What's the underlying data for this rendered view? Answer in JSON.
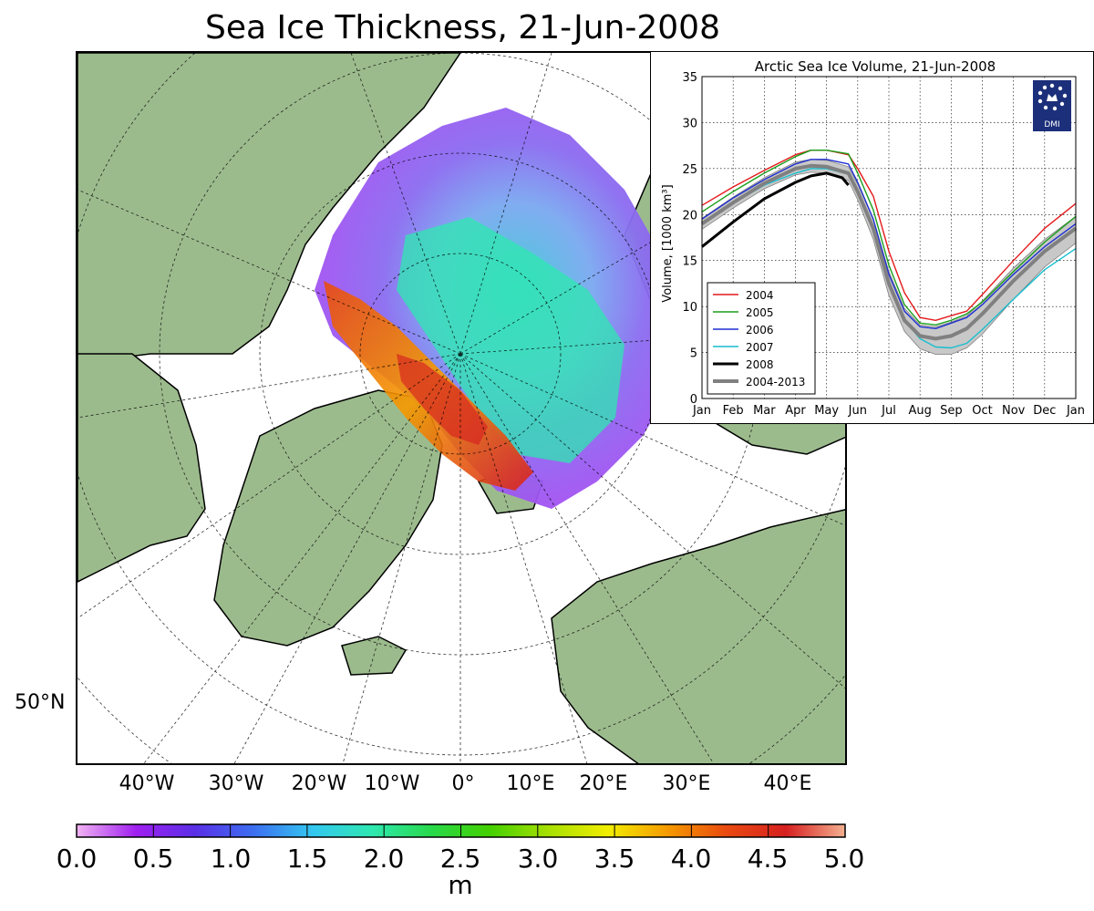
{
  "figure": {
    "title": "Sea Ice Thickness, 21-Jun-2008"
  },
  "map": {
    "lat_labels": [
      "50°N"
    ],
    "lon_labels": [
      "40°W",
      "30°W",
      "20°W",
      "10°W",
      "0°",
      "10°E",
      "20°E",
      "30°E",
      "40°E"
    ],
    "colors": {
      "land": "#9cbb8d",
      "ocean": "#ffffff"
    }
  },
  "colorbar": {
    "unit": "m",
    "ticks": [
      "0.0",
      "0.5",
      "1.0",
      "1.5",
      "2.0",
      "2.5",
      "3.0",
      "3.5",
      "4.0",
      "4.5",
      "5.0"
    ],
    "range": [
      0,
      5
    ],
    "colors": [
      "#f2b4f2",
      "#a020f0",
      "#5a2fe6",
      "#3c6ff0",
      "#33c8f0",
      "#2ee8b0",
      "#28d94a",
      "#44d000",
      "#a8e000",
      "#f2ee00",
      "#f59a00",
      "#e94a10",
      "#d62020",
      "#f4b090"
    ]
  },
  "chart_data": {
    "type": "line",
    "title": "Arctic Sea Ice Volume, 21-Jun-2008",
    "xlabel": "",
    "ylabel": "Volume, [1000 km³]",
    "xlim": [
      0,
      12
    ],
    "ylim": [
      0,
      35
    ],
    "yticks": [
      "0",
      "5",
      "10",
      "15",
      "20",
      "25",
      "30",
      "35"
    ],
    "xtick_labels": [
      "Jan",
      "Feb",
      "Mar",
      "Apr",
      "May",
      "Jun",
      "Jul",
      "Aug",
      "Sep",
      "Oct",
      "Nov",
      "Dec",
      "Jan"
    ],
    "grid": true,
    "legend_position": "lower-left",
    "logo_text": "DMI",
    "series": [
      {
        "name": "2004",
        "color": "#e41a1c",
        "x": [
          0,
          1,
          2,
          3,
          3.5,
          4,
          4.7,
          5,
          5.5,
          6,
          6.5,
          7,
          7.5,
          8,
          8.5,
          9,
          10,
          11,
          12
        ],
        "y": [
          21,
          23,
          24.8,
          26.5,
          27,
          27,
          26.5,
          25,
          22,
          16,
          11.5,
          8.8,
          8.5,
          9,
          9.5,
          11.3,
          15,
          18.5,
          21.2
        ]
      },
      {
        "name": "2005",
        "color": "#1b9e1b",
        "x": [
          0,
          1,
          2,
          3,
          3.5,
          4,
          4.7,
          5,
          5.5,
          6,
          6.5,
          7,
          7.5,
          8,
          8.5,
          9,
          10,
          11,
          12
        ],
        "y": [
          20.3,
          22.5,
          24.5,
          26.3,
          27,
          27,
          26.6,
          24.5,
          20.5,
          14.5,
          10.2,
          8.2,
          8,
          8.5,
          9.2,
          10.5,
          13.8,
          17,
          19.8
        ]
      },
      {
        "name": "2006",
        "color": "#1f2fd0",
        "x": [
          0,
          1,
          2,
          3,
          3.5,
          4,
          4.7,
          5,
          5.5,
          6,
          6.5,
          7,
          7.5,
          8,
          8.5,
          9,
          10,
          11,
          12
        ],
        "y": [
          19.5,
          21.8,
          23.8,
          25.5,
          26,
          26,
          25.5,
          23.5,
          19.5,
          13.5,
          9.5,
          7.8,
          7.6,
          8.2,
          8.8,
          10.2,
          13.5,
          16.5,
          19
        ]
      },
      {
        "name": "2007",
        "color": "#17becf",
        "x": [
          0,
          1,
          2,
          3,
          3.5,
          4,
          4.7,
          5,
          5.5,
          6,
          6.5,
          7,
          7.5,
          8,
          8.5,
          9,
          10,
          11,
          12
        ],
        "y": [
          19,
          21.2,
          23.2,
          24.5,
          25,
          25,
          24.4,
          22.5,
          18.5,
          12.5,
          8.5,
          6.5,
          5.6,
          5.5,
          6,
          7.5,
          10.8,
          14,
          16.3
        ]
      },
      {
        "name": "2008",
        "color": "#000000",
        "width": 3,
        "x": [
          0,
          1,
          2,
          3,
          3.5,
          4,
          4.5,
          4.7
        ],
        "y": [
          16.5,
          19.2,
          21.7,
          23.5,
          24.2,
          24.5,
          24,
          23.2
        ]
      },
      {
        "name": "2004-2013",
        "color": "#808080",
        "width": 4,
        "band": true,
        "x": [
          0,
          1,
          2,
          3,
          3.5,
          4,
          4.7,
          5,
          5.5,
          6,
          6.5,
          7,
          7.5,
          8,
          8.5,
          9,
          10,
          11,
          12
        ],
        "y": [
          19,
          21.3,
          23.4,
          25,
          25.3,
          25.2,
          24.5,
          22.5,
          18.5,
          12.5,
          8.5,
          6.8,
          6.5,
          6.8,
          7.6,
          9.2,
          12.8,
          16,
          18.5
        ],
        "upper": [
          19.6,
          21.9,
          24,
          25.7,
          26,
          25.9,
          25.2,
          23.3,
          19.5,
          13.8,
          9.8,
          8,
          7.8,
          8.3,
          9,
          10.6,
          14.2,
          17.3,
          19.8
        ],
        "lower": [
          18.4,
          20.7,
          22.8,
          24.3,
          24.6,
          24.5,
          23.7,
          21.6,
          17.3,
          11.2,
          7.3,
          5.4,
          4.8,
          4.8,
          5.5,
          7,
          10.8,
          14.3,
          16.9
        ]
      }
    ]
  }
}
